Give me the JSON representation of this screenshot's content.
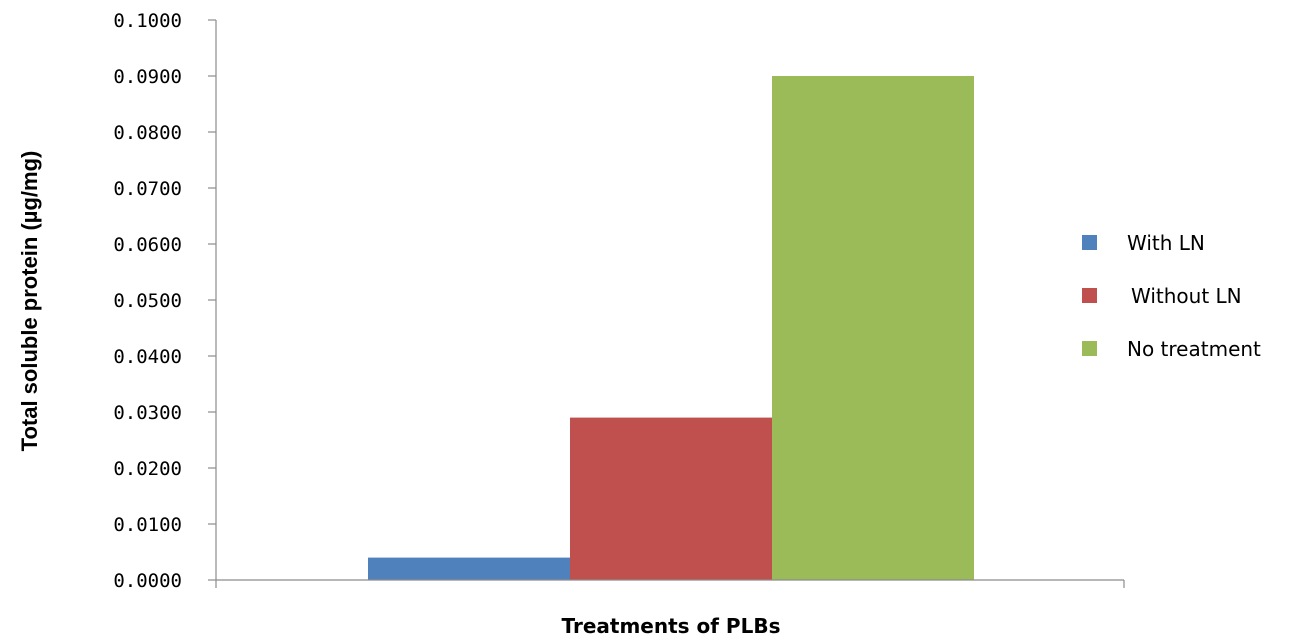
{
  "chart_data": {
    "type": "bar",
    "categories": [
      ""
    ],
    "series": [
      {
        "name": "With LN",
        "color": "#4f81bd",
        "values": [
          0.004
        ]
      },
      {
        "name": "Without LN",
        "color": "#c0504d",
        "values": [
          0.029
        ]
      },
      {
        "name": "No treatment",
        "color": "#9bbb59",
        "values": [
          0.09
        ]
      }
    ],
    "title": "",
    "xlabel": "Treatments of PLBs",
    "ylabel": "Total soluble protein (µg/mg)",
    "ylim": [
      0,
      0.1
    ],
    "yticks": [
      "0.0000",
      "0.0100",
      "0.0200",
      "0.0300",
      "0.0400",
      "0.0500",
      "0.0600",
      "0.0700",
      "0.0800",
      "0.0900",
      "0.1000"
    ],
    "grid": false,
    "legend_position": "right"
  }
}
